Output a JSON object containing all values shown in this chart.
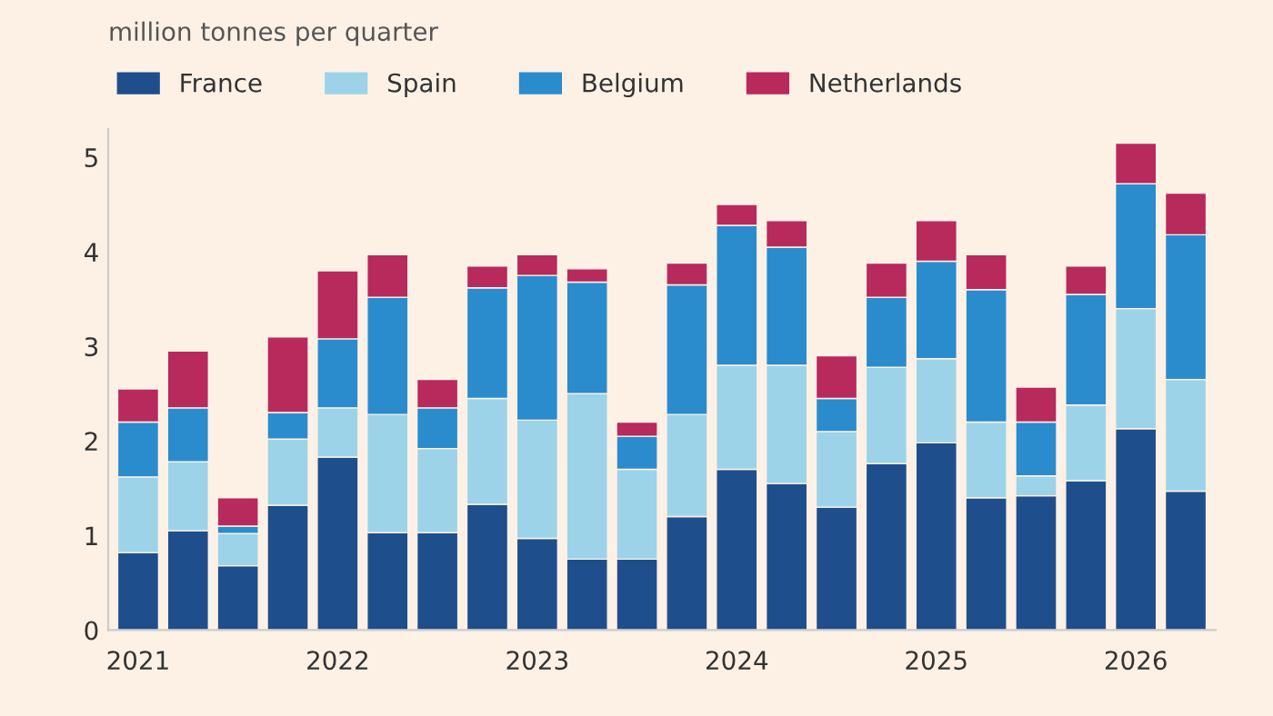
{
  "chart_data": {
    "type": "bar",
    "stacked": true,
    "ylabel": "million tonnes per quarter",
    "categories": [
      "2021",
      null,
      null,
      null,
      "2022",
      null,
      null,
      null,
      "2023",
      null,
      null,
      null,
      "2024",
      null,
      null,
      null,
      "2025",
      null,
      null,
      null,
      "2026",
      null
    ],
    "series": [
      {
        "name": "France",
        "color": "#1f4e8c",
        "values": [
          0.82,
          1.05,
          0.68,
          1.32,
          1.83,
          1.03,
          1.03,
          1.33,
          0.97,
          0.75,
          0.75,
          1.2,
          1.7,
          1.55,
          1.3,
          1.76,
          1.98,
          1.4,
          1.42,
          1.58,
          2.13,
          1.47
        ]
      },
      {
        "name": "Spain",
        "color": "#9dd3e8",
        "values": [
          0.8,
          0.73,
          0.34,
          0.7,
          0.52,
          1.25,
          0.89,
          1.12,
          1.25,
          1.75,
          0.95,
          1.08,
          1.1,
          1.25,
          0.8,
          1.02,
          0.89,
          0.8,
          0.21,
          0.8,
          1.27,
          1.18
        ]
      },
      {
        "name": "Belgium",
        "color": "#2a8ccc",
        "values": [
          0.58,
          0.57,
          0.08,
          0.28,
          0.73,
          1.24,
          0.43,
          1.17,
          1.53,
          1.18,
          0.35,
          1.37,
          1.48,
          1.25,
          0.35,
          0.74,
          1.03,
          1.4,
          0.57,
          1.17,
          1.32,
          1.53
        ]
      },
      {
        "name": "Netherlands",
        "color": "#b8295c",
        "values": [
          0.35,
          0.6,
          0.3,
          0.8,
          0.72,
          0.45,
          0.3,
          0.23,
          0.22,
          0.14,
          0.15,
          0.23,
          0.22,
          0.28,
          0.45,
          0.36,
          0.43,
          0.37,
          0.37,
          0.3,
          0.43,
          0.44
        ]
      }
    ],
    "ylim": [
      0,
      5.3
    ],
    "yticks": [
      0,
      1,
      2,
      3,
      4,
      5
    ],
    "grid": false,
    "legend": "top left"
  }
}
